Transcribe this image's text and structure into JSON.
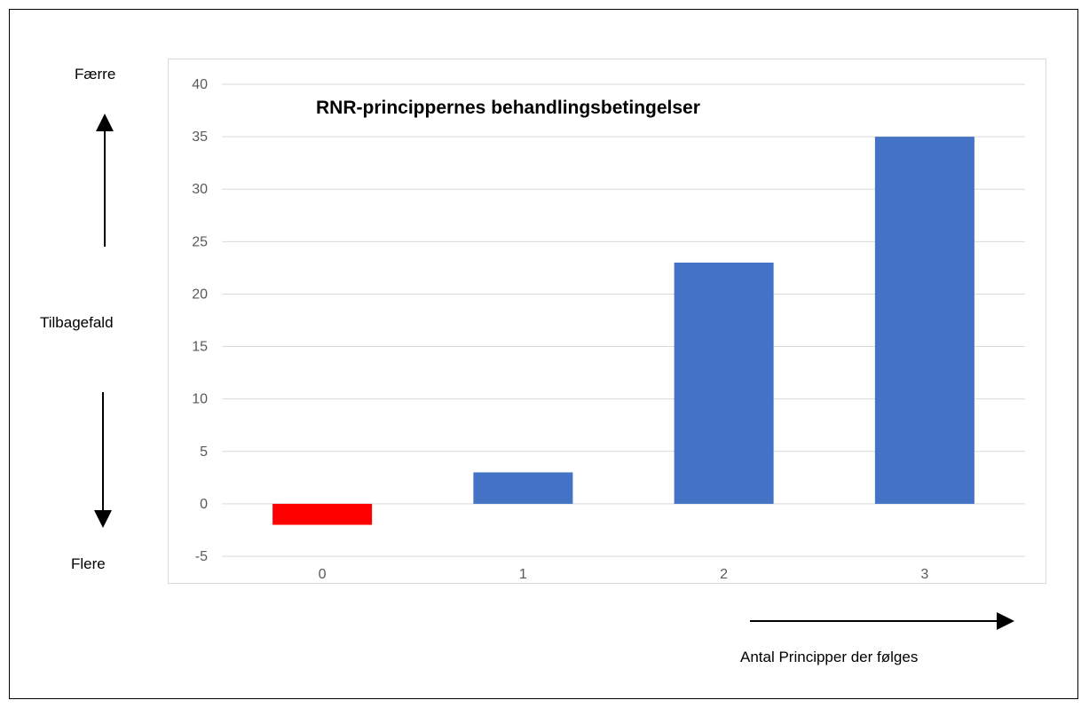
{
  "chart_data": {
    "type": "bar",
    "title": "RNR-princippernes behandlingsbetingelser",
    "xlabel": "Antal Principper der følges",
    "ylabel": "Tilbagefald",
    "ylabel_top": "Færre",
    "ylabel_bottom": "Flere",
    "categories": [
      "0",
      "1",
      "2",
      "3"
    ],
    "values": [
      -2,
      3,
      23,
      35
    ],
    "bar_colors": [
      "#ff0000",
      "#4472c4",
      "#4472c4",
      "#4472c4"
    ],
    "ylim": [
      -5,
      40
    ],
    "yticks": [
      -5,
      0,
      5,
      10,
      15,
      20,
      25,
      30,
      35,
      40
    ],
    "grid": true,
    "legend": "none"
  }
}
